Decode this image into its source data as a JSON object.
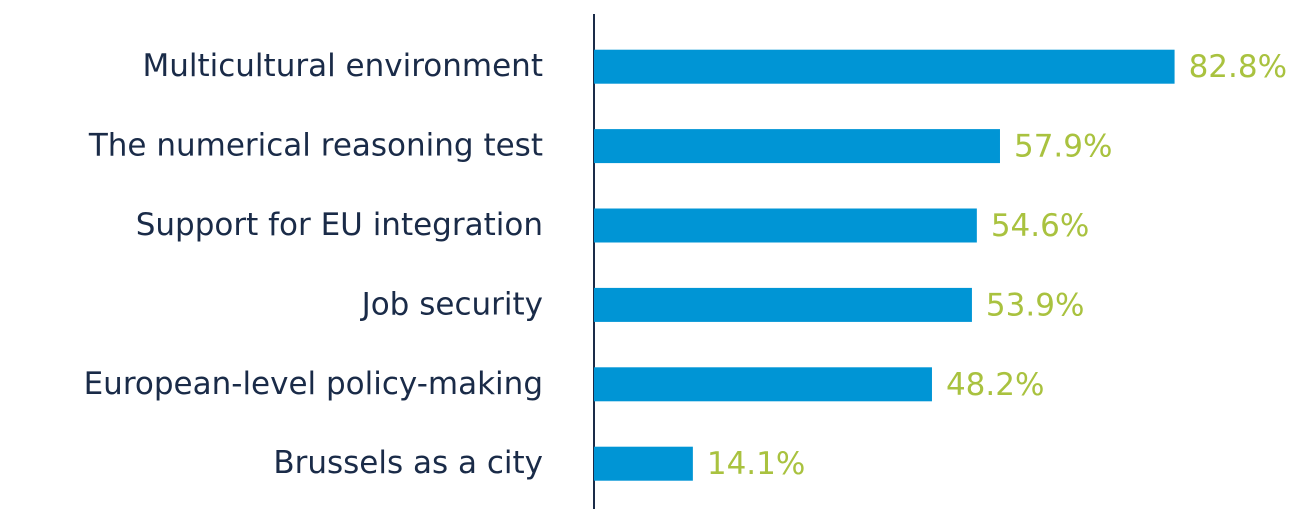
{
  "chart_data": {
    "type": "bar",
    "orientation": "horizontal",
    "categories": [
      "Multicultural environment",
      "The numerical reasoning test",
      "Support for EU integration",
      "Job security",
      "European-level policy-making",
      "Brussels as a city"
    ],
    "values": [
      82.8,
      57.9,
      54.6,
      53.9,
      48.2,
      14.1
    ],
    "value_labels": [
      "82.8%",
      "57.9%",
      "54.6%",
      "53.9%",
      "48.2%",
      "14.1%"
    ],
    "color": "#0095d5",
    "label_color": "#a9c23f",
    "xlim": [
      0,
      85
    ]
  }
}
